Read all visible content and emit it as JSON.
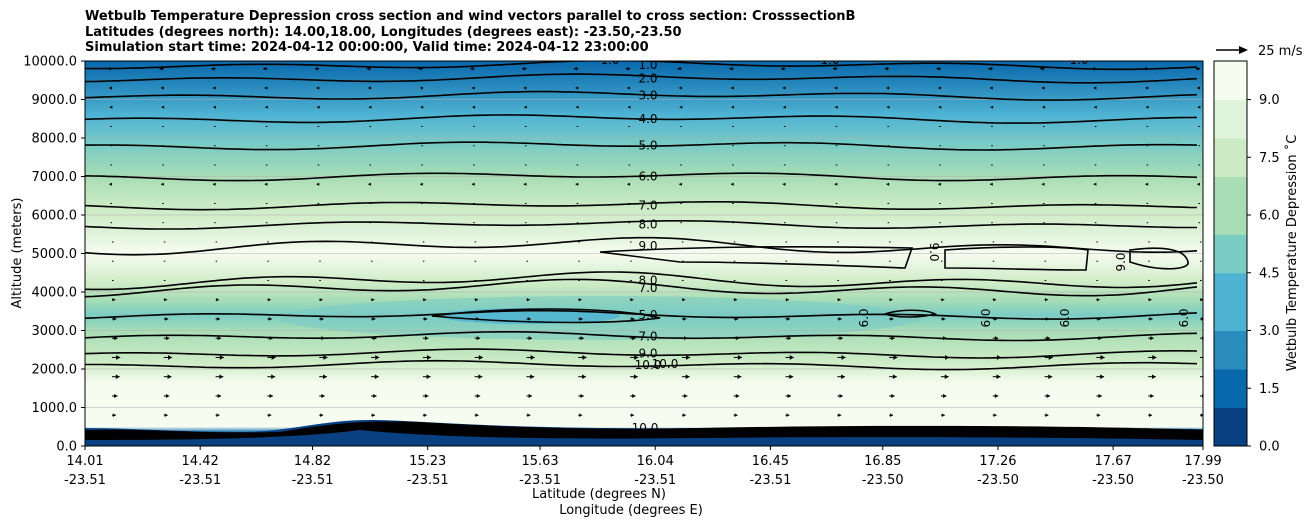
{
  "chart_data": {
    "type": "contour",
    "title_lines": [
      "Wetbulb Temperature Depression cross section and wind vectors parallel to cross section: CrosssectionB",
      "Latitudes (degrees north): 14.00,18.00, Longitudes (degrees east): -23.50,-23.50",
      "Simulation start time: 2024-04-12 00:00:00, Valid time: 2024-04-12 23:00:00"
    ],
    "ylabel": "Altitude (meters)",
    "xlabel_lat": "Latitude (degrees N)",
    "xlabel_lon": "Longitude (degrees E)",
    "ylim": [
      0,
      10000
    ],
    "yticks": [
      "0.0",
      "1000.0",
      "2000.0",
      "3000.0",
      "4000.0",
      "5000.0",
      "6000.0",
      "7000.0",
      "8000.0",
      "9000.0",
      "10000.0"
    ],
    "xlim": [
      14.01,
      17.99
    ],
    "xticks": [
      {
        "lat": 14.01,
        "lon": "-23.51",
        "label": "14.01"
      },
      {
        "lat": 14.42,
        "lon": "-23.51",
        "label": "14.42"
      },
      {
        "lat": 14.82,
        "lon": "-23.51",
        "label": "14.82"
      },
      {
        "lat": 15.23,
        "lon": "-23.51",
        "label": "15.23"
      },
      {
        "lat": 15.63,
        "lon": "-23.51",
        "label": "15.63"
      },
      {
        "lat": 16.04,
        "lon": "-23.51",
        "label": "16.04"
      },
      {
        "lat": 16.45,
        "lon": "-23.51",
        "label": "16.45"
      },
      {
        "lat": 16.85,
        "lon": "-23.50",
        "label": "16.85"
      },
      {
        "lat": 17.26,
        "lon": "-23.50",
        "label": "17.26"
      },
      {
        "lat": 17.67,
        "lon": "-23.50",
        "label": "17.67"
      },
      {
        "lat": 17.99,
        "lon": "-23.50",
        "label": "17.99"
      }
    ],
    "colorbar": {
      "label": "Wetbulb Temperature Depression ˚C",
      "min": 0.0,
      "max": 10.0,
      "ticks": [
        "0.0",
        "1.5",
        "3.0",
        "4.5",
        "6.0",
        "7.5",
        "9.0"
      ],
      "tick_values": [
        0,
        1.5,
        3.0,
        4.5,
        6.0,
        7.5,
        9.0
      ],
      "colors": [
        "#084081",
        "#0868ac",
        "#2b8cbe",
        "#4eb3d3",
        "#7bccc4",
        "#a8ddb5",
        "#ccebc5",
        "#e0f3db",
        "#f7fcf0"
      ]
    },
    "contour_levels": [
      {
        "label": "1.0",
        "alt": 9900
      },
      {
        "label": "2.0",
        "alt": 9550
      },
      {
        "label": "3.0",
        "alt": 9100
      },
      {
        "label": "4.0",
        "alt": 8500
      },
      {
        "label": "5.0",
        "alt": 7800
      },
      {
        "label": "6.0",
        "alt": 7000
      },
      {
        "label": "7.0",
        "alt": 6250
      },
      {
        "label": "8.0",
        "alt": 5750
      },
      {
        "label": "9.0",
        "alt": 5200
      },
      {
        "label": "8.0",
        "alt": 4300
      },
      {
        "label": "7.0",
        "alt": 4100
      },
      {
        "label": "5.0",
        "alt": 3400
      },
      {
        "label": "7.0",
        "alt": 2850
      },
      {
        "label": "9.0",
        "alt": 2400
      },
      {
        "label": "10.0",
        "alt": 2100
      }
    ],
    "isolated_labels": [
      "9.0",
      "9.0",
      "6.0",
      "6.0",
      "6.0",
      "6.0",
      "10.0",
      "10.0",
      "1.0",
      "1.0",
      "1.0"
    ],
    "wind_key": "25 m/s",
    "wind_levels_m": [
      9800,
      9300,
      8800,
      8300,
      7800,
      7300,
      6800,
      6300,
      5800,
      5300,
      4800,
      4300,
      3800,
      3300,
      2800,
      2300,
      1800,
      1300,
      800
    ],
    "wind_speed_mps": [
      -8,
      -5,
      -4,
      -3,
      -2,
      -3,
      -5,
      -3,
      -2,
      1,
      2,
      3,
      6,
      8,
      10,
      15,
      14,
      10,
      7
    ]
  }
}
